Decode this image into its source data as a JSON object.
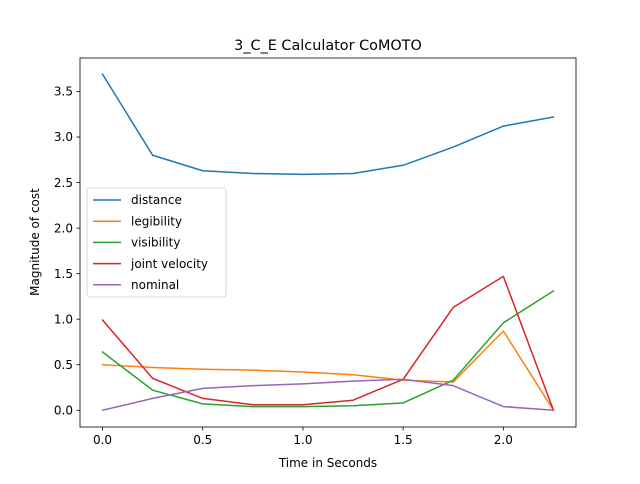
{
  "chart_data": {
    "type": "line",
    "title": "3_C_E Calculator CoMOTO",
    "xlabel": "Time in Seconds",
    "ylabel": "Magnitude of cost",
    "xlim": [
      -0.1125,
      2.3625
    ],
    "ylim": [
      -0.184,
      3.868
    ],
    "x_ticks": [
      0.0,
      0.5,
      1.0,
      1.5,
      2.0
    ],
    "x_tick_labels": [
      "0.0",
      "0.5",
      "1.0",
      "1.5",
      "2.0"
    ],
    "y_ticks": [
      0.0,
      0.5,
      1.0,
      1.5,
      2.0,
      2.5,
      3.0,
      3.5
    ],
    "y_tick_labels": [
      "0.0",
      "0.5",
      "1.0",
      "1.5",
      "2.0",
      "2.5",
      "3.0",
      "3.5"
    ],
    "grid": false,
    "legend_position": "center-left",
    "x": [
      0.0,
      0.25,
      0.5,
      0.75,
      1.0,
      1.25,
      1.5,
      1.75,
      2.0,
      2.25
    ],
    "series": [
      {
        "name": "distance",
        "color": "#1f77b4",
        "values": [
          3.69,
          2.8,
          2.63,
          2.6,
          2.59,
          2.6,
          2.69,
          2.89,
          3.12,
          3.22
        ]
      },
      {
        "name": "legibility",
        "color": "#ff7f0e",
        "values": [
          0.5,
          0.47,
          0.45,
          0.44,
          0.42,
          0.39,
          0.33,
          0.31,
          0.87,
          0.0
        ]
      },
      {
        "name": "visibility",
        "color": "#2ca02c",
        "values": [
          0.64,
          0.22,
          0.07,
          0.04,
          0.04,
          0.05,
          0.08,
          0.33,
          0.96,
          1.31
        ]
      },
      {
        "name": "joint velocity",
        "color": "#d62728",
        "values": [
          0.99,
          0.35,
          0.13,
          0.06,
          0.06,
          0.11,
          0.34,
          1.13,
          1.47,
          0.0
        ]
      },
      {
        "name": "nominal",
        "color": "#9467bd",
        "values": [
          0.0,
          0.13,
          0.24,
          0.27,
          0.29,
          0.32,
          0.34,
          0.27,
          0.04,
          0.0
        ]
      }
    ]
  }
}
